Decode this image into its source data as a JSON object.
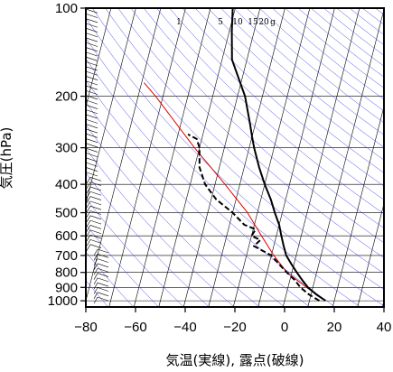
{
  "chart_data": {
    "type": "line",
    "subtype": "skew-t emagram (logarithmic pressure axis)",
    "xlabel": "気温(実線), 露点(破線)",
    "ylabel": "気圧(hPa)",
    "x_ticks": [
      -80,
      -60,
      -40,
      -20,
      0,
      20,
      40
    ],
    "y_ticks": [
      100,
      200,
      300,
      400,
      500,
      600,
      700,
      800,
      900,
      1000
    ],
    "xlim": [
      -80,
      40
    ],
    "ylim": [
      1050,
      100
    ],
    "y_scale": "log",
    "mixing_ratio_labels": [
      "1",
      "5",
      "10",
      "15",
      "20",
      "g"
    ],
    "colors": {
      "temperature": "#000000",
      "dewpoint": "#000000",
      "parcel": "#dd0000",
      "dry_adiabats": "#4444ee",
      "isotherms": "#000000",
      "wind_barbs": "#000000"
    },
    "series": [
      {
        "line_style": "solid",
        "points": [
          {
            "p": 1000,
            "t": 16.5
          },
          {
            "p": 950,
            "t": 12
          },
          {
            "p": 900,
            "t": 8
          },
          {
            "p": 850,
            "t": 5
          },
          {
            "p": 800,
            "t": 2
          },
          {
            "p": 750,
            "t": -1
          },
          {
            "p": 700,
            "t": -4
          },
          {
            "p": 650,
            "t": -6
          },
          {
            "p": 600,
            "t": -8
          },
          {
            "p": 550,
            "t": -10
          },
          {
            "p": 500,
            "t": -13
          },
          {
            "p": 450,
            "t": -16
          },
          {
            "p": 400,
            "t": -20
          },
          {
            "p": 350,
            "t": -24
          },
          {
            "p": 300,
            "t": -28
          },
          {
            "p": 275,
            "t": -30
          },
          {
            "p": 250,
            "t": -32
          },
          {
            "p": 200,
            "t": -37
          },
          {
            "p": 150,
            "t": -46
          },
          {
            "p": 120,
            "t": -49
          },
          {
            "p": 100,
            "t": -51
          }
        ]
      },
      {
        "line_style": "dashed",
        "points": [
          {
            "p": 1000,
            "t": 14
          },
          {
            "p": 950,
            "t": 9
          },
          {
            "p": 900,
            "t": 5
          },
          {
            "p": 850,
            "t": 2
          },
          {
            "p": 800,
            "t": -2
          },
          {
            "p": 750,
            "t": -6
          },
          {
            "p": 700,
            "t": -10
          },
          {
            "p": 650,
            "t": -18
          },
          {
            "p": 620,
            "t": -16
          },
          {
            "p": 600,
            "t": -20
          },
          {
            "p": 570,
            "t": -19
          },
          {
            "p": 550,
            "t": -24
          },
          {
            "p": 500,
            "t": -30
          },
          {
            "p": 450,
            "t": -38
          },
          {
            "p": 400,
            "t": -44
          },
          {
            "p": 350,
            "t": -48
          },
          {
            "p": 300,
            "t": -50
          },
          {
            "p": 280,
            "t": -52
          },
          {
            "p": 270,
            "t": -56
          }
        ]
      },
      {
        "line_style": "solid",
        "points": [
          {
            "p": 1000,
            "t": 16.5
          },
          {
            "p": 900,
            "t": 7.5
          },
          {
            "p": 800,
            "t": -2
          },
          {
            "p": 700,
            "t": -9
          },
          {
            "p": 600,
            "t": -16
          },
          {
            "p": 500,
            "t": -24
          },
          {
            "p": 400,
            "t": -36
          },
          {
            "p": 300,
            "t": -52
          },
          {
            "p": 200,
            "t": -73
          },
          {
            "p": 180,
            "t": -79
          }
        ]
      }
    ]
  }
}
